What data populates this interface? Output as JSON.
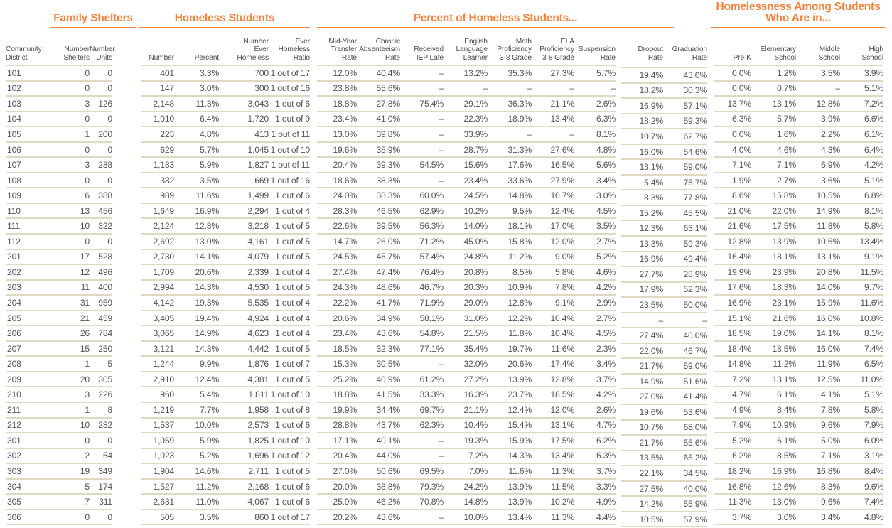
{
  "colors": {
    "accent": "#F6823C",
    "rule": "#DFD9C2",
    "text": "#515257",
    "header_text": "#4C4D4F"
  },
  "chart_data": {
    "type": "table",
    "title_groups": [
      "Family Shelters",
      "Homeless Students",
      "Percent of Homeless Students...",
      "Homelessness Among Students Who Are in..."
    ],
    "columns": [
      "Community\nDistrict",
      "Number\nShelters",
      "Number\nUnits",
      "Number",
      "Percent",
      "Number\nEver\nHomeless",
      "Ever\nHomeless\nRatio",
      "Mid-Year\nTransfer\nRate",
      "Chronic\nAbsenteeism\nRate",
      "Received\nIEP Late",
      "English\nLanguage\nLearner",
      "Math\nProficiency\n3-8 Grade",
      "ELA\nProficiency\n3-8 Grade",
      "Suspension\nRate",
      "Dropout\nRate",
      "Graduation\nRate",
      "Pre-K",
      "Elementary\nSchool",
      "Middle\nSchool",
      "High\nSchool"
    ],
    "rows": [
      [
        "101",
        "0",
        "0",
        "401",
        "3.3%",
        "700",
        "1 out of 17",
        "12.0%",
        "40.4%",
        "–",
        "13.2%",
        "35.3%",
        "27.3%",
        "5.7%",
        "19.4%",
        "43.0%",
        "0.0%",
        "1.2%",
        "3.5%",
        "3.9%"
      ],
      [
        "102",
        "0",
        "0",
        "147",
        "3.0%",
        "300",
        "1 out of 16",
        "23.8%",
        "55.6%",
        "–",
        "–",
        "–",
        "–",
        "–",
        "18.2%",
        "30.3%",
        "0.0%",
        "0.7%",
        "–",
        "5.1%"
      ],
      [
        "103",
        "3",
        "126",
        "2,148",
        "11.3%",
        "3,043",
        "1 out of 6",
        "18.8%",
        "27.8%",
        "75.4%",
        "29.1%",
        "36.3%",
        "21.1%",
        "2.6%",
        "16.9%",
        "57.1%",
        "13.7%",
        "13.1%",
        "12.8%",
        "7.2%"
      ],
      [
        "104",
        "0",
        "0",
        "1,010",
        "6.4%",
        "1,720",
        "1 out of 9",
        "23.4%",
        "41.0%",
        "–",
        "22.3%",
        "18.9%",
        "13.4%",
        "6.3%",
        "18.2%",
        "59.3%",
        "6.3%",
        "5.7%",
        "3.9%",
        "6.6%"
      ],
      [
        "105",
        "1",
        "200",
        "223",
        "4.8%",
        "413",
        "1 out of 11",
        "13.0%",
        "39.8%",
        "–",
        "33.9%",
        "–",
        "–",
        "8.1%",
        "10.7%",
        "62.7%",
        "0.0%",
        "1.6%",
        "2.2%",
        "6.1%"
      ],
      [
        "106",
        "0",
        "0",
        "629",
        "5.7%",
        "1,045",
        "1 out of 10",
        "19.6%",
        "35.9%",
        "–",
        "28.7%",
        "31.3%",
        "27.6%",
        "4.8%",
        "16.0%",
        "54.6%",
        "4.0%",
        "4.6%",
        "4.3%",
        "6.4%"
      ],
      [
        "107",
        "3",
        "288",
        "1,183",
        "5.9%",
        "1,827",
        "1 out of 11",
        "20.4%",
        "39.3%",
        "54.5%",
        "15.6%",
        "17.6%",
        "16.5%",
        "5.6%",
        "13.1%",
        "59.0%",
        "7.1%",
        "7.1%",
        "6.9%",
        "4.2%"
      ],
      [
        "108",
        "0",
        "0",
        "382",
        "3.5%",
        "669",
        "1 out of 16",
        "18.6%",
        "38.3%",
        "–",
        "23.4%",
        "33.6%",
        "27.9%",
        "3.4%",
        "5.4%",
        "75.7%",
        "1.9%",
        "2.7%",
        "3.6%",
        "5.1%"
      ],
      [
        "109",
        "6",
        "388",
        "989",
        "11.6%",
        "1,499",
        "1 out of 6",
        "24.0%",
        "38.3%",
        "60.0%",
        "24.5%",
        "14.8%",
        "10.7%",
        "3.0%",
        "8.3%",
        "77.8%",
        "8.6%",
        "15.8%",
        "10.5%",
        "6.8%"
      ],
      [
        "110",
        "13",
        "456",
        "1,649",
        "16.9%",
        "2,294",
        "1 out of 4",
        "28.3%",
        "46.5%",
        "62.9%",
        "10.2%",
        "9.5%",
        "12.4%",
        "4.5%",
        "15.2%",
        "45.5%",
        "21.0%",
        "22.0%",
        "14.9%",
        "8.1%"
      ],
      [
        "111",
        "10",
        "322",
        "2,124",
        "12.8%",
        "3,218",
        "1 out of 5",
        "22.6%",
        "39.5%",
        "56.3%",
        "14.0%",
        "18.1%",
        "17.0%",
        "3.5%",
        "12.3%",
        "63.1%",
        "21.6%",
        "17.5%",
        "11.8%",
        "5.8%"
      ],
      [
        "112",
        "0",
        "0",
        "2,692",
        "13.0%",
        "4,161",
        "1 out of 5",
        "14.7%",
        "26.0%",
        "71.2%",
        "45.0%",
        "15.8%",
        "12.0%",
        "2.7%",
        "13.3%",
        "59.3%",
        "12.8%",
        "13.9%",
        "10.6%",
        "13.4%"
      ],
      [
        "201",
        "17",
        "528",
        "2,730",
        "14.1%",
        "4,079",
        "1 out of 5",
        "24.5%",
        "45.7%",
        "57.4%",
        "24.8%",
        "11.2%",
        "9.0%",
        "5.2%",
        "16.9%",
        "49.4%",
        "16.4%",
        "18.1%",
        "13.1%",
        "9.1%"
      ],
      [
        "202",
        "12",
        "496",
        "1,709",
        "20.6%",
        "2,339",
        "1 out of 4",
        "27.4%",
        "47.4%",
        "76.4%",
        "20.8%",
        "8.5%",
        "5.8%",
        "4.6%",
        "27.7%",
        "28.9%",
        "19.9%",
        "23.9%",
        "20.8%",
        "11.5%"
      ],
      [
        "203",
        "11",
        "400",
        "2,994",
        "14.3%",
        "4,530",
        "1 out of 5",
        "24.3%",
        "48.6%",
        "46.7%",
        "20.3%",
        "10.9%",
        "7.8%",
        "4.2%",
        "17.9%",
        "52.3%",
        "17.6%",
        "18.3%",
        "14.0%",
        "9.7%"
      ],
      [
        "204",
        "31",
        "959",
        "4,142",
        "19.3%",
        "5,535",
        "1 out of 4",
        "22.2%",
        "41.7%",
        "71.9%",
        "29.0%",
        "12.8%",
        "9.1%",
        "2.9%",
        "23.5%",
        "50.0%",
        "16.9%",
        "23.1%",
        "15.9%",
        "11.6%"
      ],
      [
        "205",
        "21",
        "459",
        "3,405",
        "19.4%",
        "4,924",
        "1 out of 4",
        "20.6%",
        "34.9%",
        "58.1%",
        "31.0%",
        "12.2%",
        "10.4%",
        "2.7%",
        "–",
        "–",
        "15.1%",
        "21.6%",
        "16.0%",
        "10.8%"
      ],
      [
        "206",
        "26",
        "784",
        "3,065",
        "14.9%",
        "4,623",
        "1 out of 4",
        "23.4%",
        "43.6%",
        "54.8%",
        "21.5%",
        "11.8%",
        "10.4%",
        "4.5%",
        "27.4%",
        "40.0%",
        "18.5%",
        "19.0%",
        "14.1%",
        "8.1%"
      ],
      [
        "207",
        "15",
        "250",
        "3,121",
        "14.3%",
        "4,442",
        "1 out of 5",
        "18.5%",
        "32.3%",
        "77.1%",
        "35.4%",
        "19.7%",
        "11.6%",
        "2.3%",
        "22.0%",
        "46.7%",
        "18.4%",
        "18.5%",
        "16.0%",
        "7.4%"
      ],
      [
        "208",
        "1",
        "5",
        "1,244",
        "9.9%",
        "1,876",
        "1 out of 7",
        "15.3%",
        "30.5%",
        "–",
        "32.0%",
        "20.6%",
        "17.4%",
        "3.4%",
        "21.7%",
        "59.0%",
        "14.8%",
        "11.2%",
        "11.9%",
        "6.5%"
      ],
      [
        "209",
        "20",
        "305",
        "2,910",
        "12.4%",
        "4,381",
        "1 out of 5",
        "25.2%",
        "40.9%",
        "61.2%",
        "27.2%",
        "13.9%",
        "12.8%",
        "3.7%",
        "14.9%",
        "51.6%",
        "7.2%",
        "13.1%",
        "12.5%",
        "11.0%"
      ],
      [
        "210",
        "3",
        "226",
        "960",
        "5.4%",
        "1,811",
        "1 out of 10",
        "18.8%",
        "41.5%",
        "33.3%",
        "16.3%",
        "23.7%",
        "18.5%",
        "4.2%",
        "27.0%",
        "41.4%",
        "4.7%",
        "6.1%",
        "4.1%",
        "5.1%"
      ],
      [
        "211",
        "1",
        "8",
        "1,219",
        "7.7%",
        "1,958",
        "1 out of 8",
        "19.9%",
        "34.4%",
        "69.7%",
        "21.1%",
        "12.4%",
        "12.0%",
        "2.6%",
        "19.6%",
        "53.6%",
        "4.9%",
        "8.4%",
        "7.8%",
        "5.8%"
      ],
      [
        "212",
        "10",
        "282",
        "1,537",
        "10.0%",
        "2,573",
        "1 out of 6",
        "28.8%",
        "43.7%",
        "62.3%",
        "10.4%",
        "15.4%",
        "13.1%",
        "4.7%",
        "10.7%",
        "68.0%",
        "7.9%",
        "10.9%",
        "9.6%",
        "7.9%"
      ],
      [
        "301",
        "0",
        "0",
        "1,059",
        "5.9%",
        "1,825",
        "1 out of 10",
        "17.1%",
        "40.1%",
        "–",
        "19.3%",
        "15.9%",
        "17.5%",
        "6.2%",
        "21.7%",
        "55.6%",
        "5.2%",
        "6.1%",
        "5.0%",
        "6.0%"
      ],
      [
        "302",
        "2",
        "54",
        "1,023",
        "5.2%",
        "1,696",
        "1 out of 12",
        "20.4%",
        "44.0%",
        "–",
        "7.2%",
        "14.3%",
        "13.4%",
        "6.3%",
        "13.5%",
        "65.2%",
        "6.2%",
        "8.5%",
        "7.1%",
        "3.1%"
      ],
      [
        "303",
        "19",
        "349",
        "1,904",
        "14.6%",
        "2,711",
        "1 out of 5",
        "27.0%",
        "50.6%",
        "69.5%",
        "7.0%",
        "11.6%",
        "11.3%",
        "3.7%",
        "22.1%",
        "34.5%",
        "18.2%",
        "16.9%",
        "16.8%",
        "8.4%"
      ],
      [
        "304",
        "5",
        "174",
        "1,527",
        "11.2%",
        "2,168",
        "1 out of 6",
        "20.0%",
        "38.8%",
        "79.3%",
        "24.2%",
        "13.9%",
        "11.5%",
        "3.3%",
        "27.5%",
        "40.0%",
        "16.8%",
        "12.6%",
        "8.3%",
        "9.6%"
      ],
      [
        "305",
        "7",
        "311",
        "2,631",
        "11.0%",
        "4,067",
        "1 out of 6",
        "25.9%",
        "46.2%",
        "70.8%",
        "14.8%",
        "13.9%",
        "10.2%",
        "4.9%",
        "14.2%",
        "55.9%",
        "11.3%",
        "13.0%",
        "9.6%",
        "7.4%"
      ],
      [
        "306",
        "0",
        "0",
        "505",
        "3.5%",
        "860",
        "1 out of 17",
        "20.2%",
        "43.6%",
        "–",
        "10.0%",
        "13.4%",
        "11.3%",
        "4.4%",
        "10.5%",
        "57.9%",
        "3.7%",
        "3.0%",
        "3.4%",
        "4.8%"
      ]
    ]
  }
}
